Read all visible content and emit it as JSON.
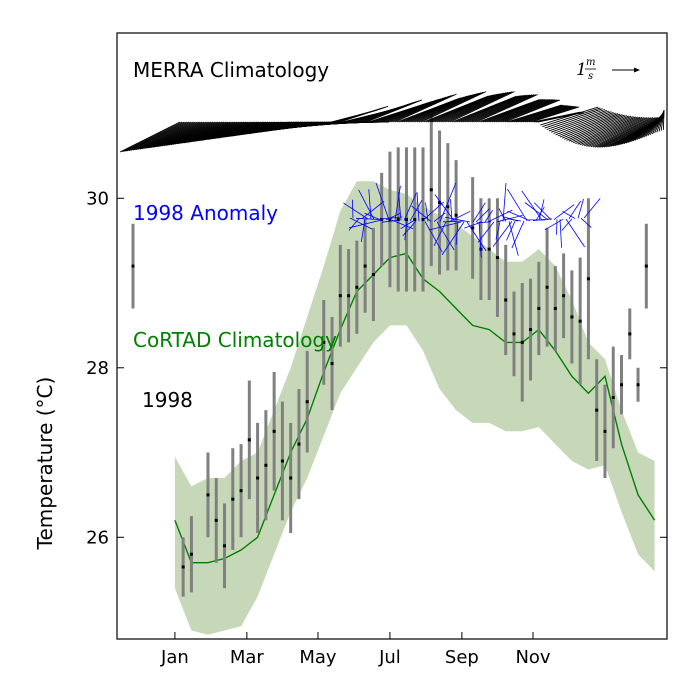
{
  "chart_data": {
    "type": "line",
    "ylabel": "Temperature (°C)",
    "xlabel": "",
    "xticks": [
      "Jan",
      "Mar",
      "May",
      "Jul",
      "Sep",
      "Nov"
    ],
    "yticks": [
      "26",
      "28",
      "30"
    ],
    "ylim": [
      24.8,
      31.95
    ],
    "xlim_weeks": [
      -7,
      59.5
    ],
    "grid": false,
    "annotations": {
      "merra": "MERRA Climatology",
      "anomaly": "1998 Anomaly",
      "cortad": "CoRTAD Climatology",
      "year": "1998",
      "scale_value": "1",
      "scale_num": "m",
      "scale_den": "s"
    },
    "colors": {
      "merra": "#000000",
      "anomaly": "#0000ff",
      "cortad": "#008000",
      "band": "#c7d8b8",
      "errorbar": "#808080"
    },
    "climatology": {
      "week": [
        0,
        2,
        4,
        6,
        8,
        10,
        12,
        14,
        16,
        18,
        20,
        22,
        24,
        26,
        28,
        30,
        32,
        34,
        36,
        38,
        40,
        42,
        44,
        46,
        48,
        50,
        52,
        54,
        56,
        58
      ],
      "mean": [
        26.2,
        25.7,
        25.7,
        25.75,
        25.85,
        26.0,
        26.5,
        27.0,
        27.4,
        27.95,
        28.45,
        28.9,
        29.1,
        29.3,
        29.35,
        29.05,
        28.9,
        28.7,
        28.5,
        28.45,
        28.3,
        28.3,
        28.45,
        28.2,
        27.9,
        27.7,
        27.9,
        27.1,
        26.5,
        26.2
      ],
      "lower": [
        25.4,
        24.9,
        24.85,
        24.9,
        24.95,
        25.3,
        25.8,
        26.3,
        26.7,
        27.2,
        27.7,
        28.0,
        28.3,
        28.5,
        28.5,
        28.2,
        27.75,
        27.5,
        27.35,
        27.35,
        27.25,
        27.25,
        27.3,
        27.1,
        26.9,
        26.8,
        26.85,
        26.3,
        25.8,
        25.6
      ],
      "upper": [
        26.95,
        26.6,
        26.7,
        26.7,
        26.9,
        27.0,
        27.5,
        28.0,
        28.6,
        29.2,
        29.85,
        30.2,
        30.2,
        30.1,
        30.05,
        29.9,
        29.8,
        29.7,
        29.55,
        29.4,
        29.25,
        29.25,
        29.4,
        29.2,
        28.8,
        28.3,
        28.1,
        27.5,
        27.0,
        26.9
      ]
    },
    "series_1998": {
      "week": [
        1,
        2,
        4,
        5,
        6,
        7,
        8,
        9,
        10,
        11,
        12,
        13,
        14,
        15,
        16,
        18,
        19,
        20,
        21,
        22,
        23,
        24,
        25,
        26,
        27,
        28,
        29,
        30,
        31,
        32,
        33,
        34,
        36,
        37,
        38,
        39,
        40,
        41,
        42,
        43,
        44,
        45,
        46,
        47,
        48,
        49,
        50,
        51,
        52,
        53,
        54,
        55,
        56,
        57
      ],
      "value": [
        25.65,
        25.8,
        26.5,
        26.2,
        25.9,
        26.45,
        26.55,
        27.15,
        26.7,
        26.85,
        27.25,
        26.9,
        26.7,
        27.1,
        27.6,
        28.3,
        28.05,
        28.85,
        28.85,
        28.95,
        29.2,
        29.1,
        29.75,
        29.75,
        29.75,
        29.75,
        29.75,
        29.75,
        30.1,
        29.95,
        29.9,
        29.8,
        29.65,
        29.4,
        29.4,
        29.3,
        28.8,
        28.4,
        28.3,
        28.45,
        28.7,
        28.95,
        28.7,
        28.85,
        28.6,
        28.55,
        29.05,
        27.5,
        27.25,
        27.65,
        27.8,
        28.4,
        27.8,
        29.2
      ],
      "err": [
        0.35,
        0.45,
        0.5,
        0.5,
        0.5,
        0.6,
        0.55,
        0.7,
        0.65,
        0.65,
        0.7,
        0.7,
        0.65,
        0.65,
        0.6,
        0.5,
        0.55,
        0.6,
        0.55,
        0.55,
        0.55,
        0.55,
        0.55,
        0.8,
        0.85,
        0.85,
        0.85,
        0.85,
        0.9,
        0.85,
        0.75,
        0.65,
        0.6,
        0.6,
        0.6,
        0.7,
        0.65,
        0.5,
        0.7,
        0.6,
        0.55,
        0.7,
        0.5,
        0.5,
        0.55,
        0.75,
        0.95,
        0.6,
        0.55,
        0.6,
        0.35,
        0.3,
        0.2,
        0.5
      ]
    },
    "legend_sample": {
      "week": -5,
      "value": 29.2,
      "err": 0.5
    }
  }
}
